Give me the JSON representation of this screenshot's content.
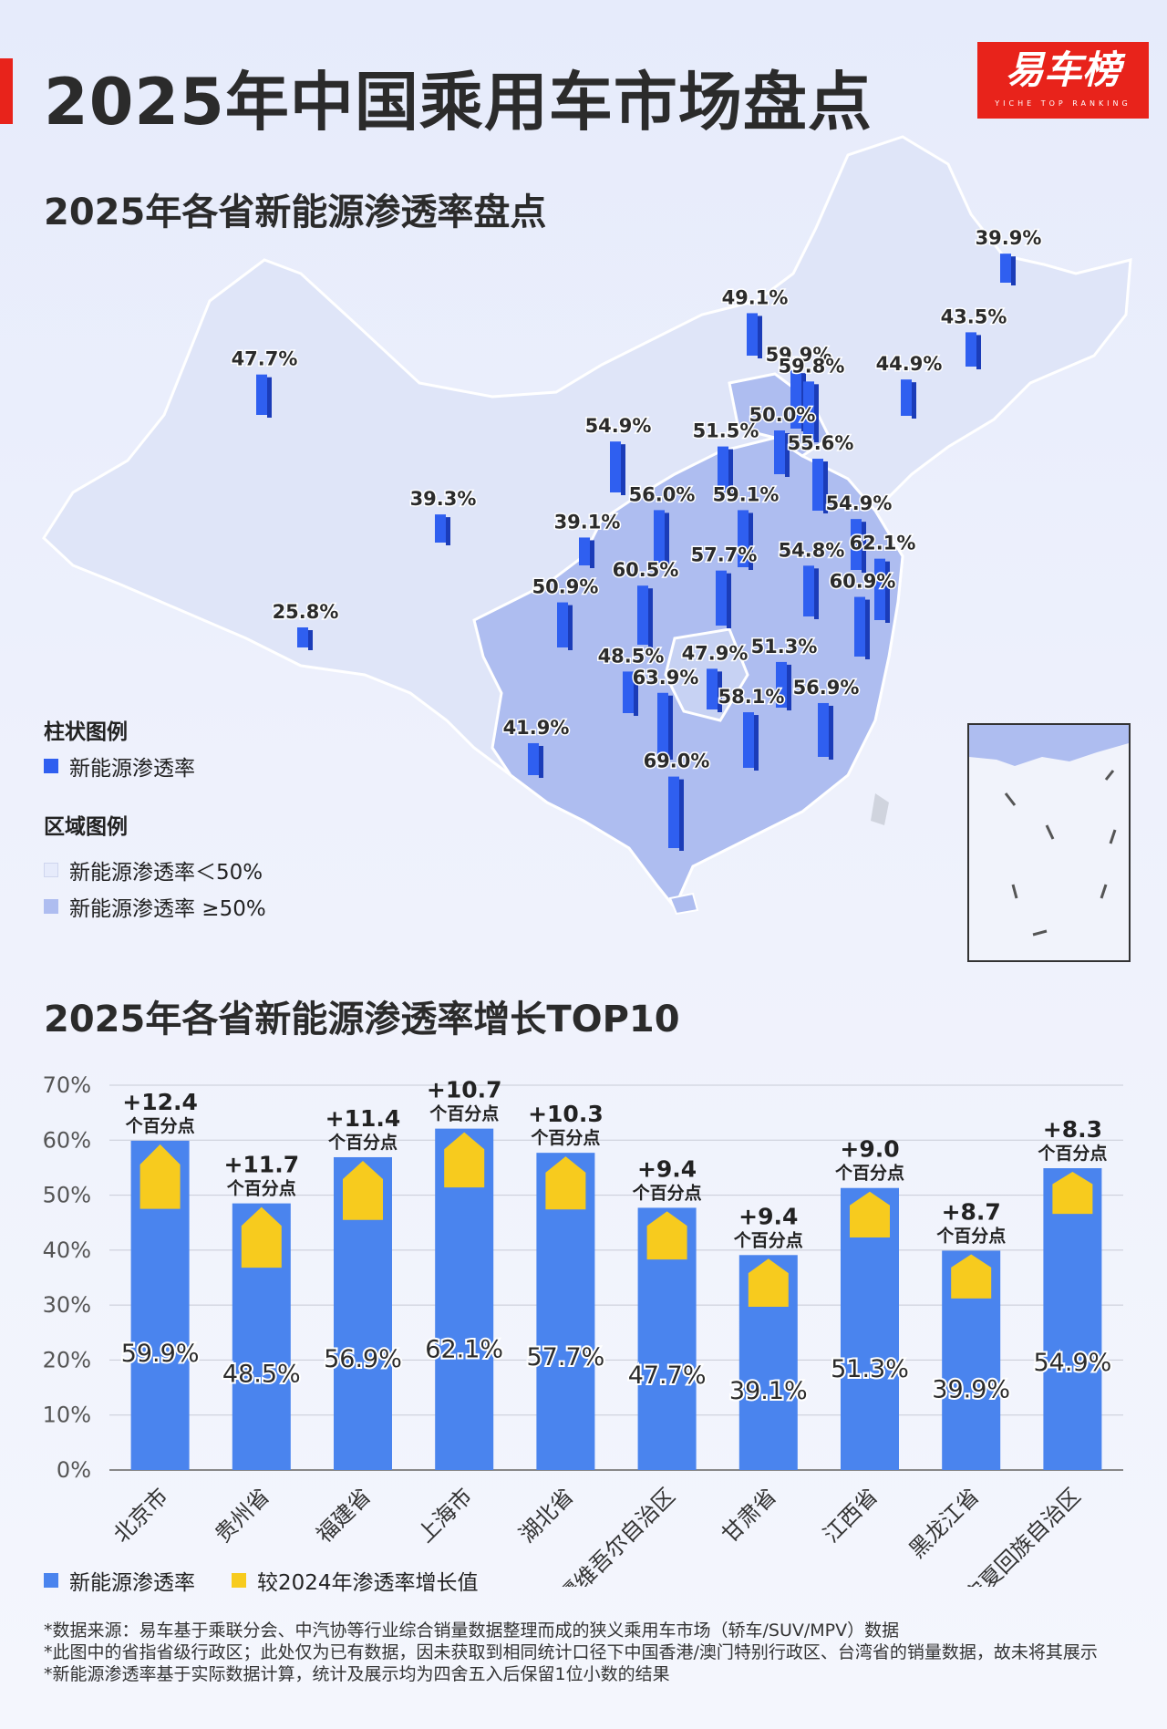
{
  "header": {
    "title": "2025年中国乘用车市场盘点",
    "brand_name": "易车榜",
    "brand_sub": "YICHE TOP RANKING",
    "brand_color": "#e8231b"
  },
  "map_section": {
    "title": "2025年各省新能源渗透率盘点",
    "bar_legend_title": "柱状图例",
    "bar_legend_item": "新能源渗透率",
    "region_legend_title": "区域图例",
    "region_low": "新能源渗透率＜50%",
    "region_high": "新能源渗透率 ≥50%",
    "colors": {
      "bar": "#2f5ff0",
      "bar_side": "#1b3cb8",
      "low_region": "#dfe5f8",
      "high_region": "#aebdf0",
      "border": "#ffffff"
    },
    "province_values": [
      "39.9%",
      "43.5%",
      "44.9%",
      "49.1%",
      "59.9%",
      "59.8%",
      "50.0%",
      "51.5%",
      "55.6%",
      "47.7%",
      "39.3%",
      "54.9%",
      "39.1%",
      "56.0%",
      "59.1%",
      "54.9%",
      "62.1%",
      "57.7%",
      "54.8%",
      "60.9%",
      "50.9%",
      "60.5%",
      "25.8%",
      "48.5%",
      "47.9%",
      "51.3%",
      "63.9%",
      "58.1%",
      "56.9%",
      "41.9%",
      "69.0%"
    ]
  },
  "chart_data": {
    "type": "bar",
    "title": "2025年各省新能源渗透率增长TOP10",
    "categories": [
      "北京市",
      "贵州省",
      "福建省",
      "上海市",
      "湖北省",
      "新疆维吾尔自治区",
      "甘肃省",
      "江西省",
      "黑龙江省",
      "宁夏回族自治区"
    ],
    "series": [
      {
        "name": "新能源渗透率",
        "values": [
          59.9,
          48.5,
          56.9,
          62.1,
          57.7,
          47.7,
          39.1,
          51.3,
          39.9,
          54.9
        ],
        "labels": [
          "59.9%",
          "48.5%",
          "56.9%",
          "62.1%",
          "57.7%",
          "47.7%",
          "39.1%",
          "51.3%",
          "39.9%",
          "54.9%"
        ],
        "color": "#4a84ee"
      },
      {
        "name": "较2024年渗透率增长值",
        "values": [
          12.4,
          11.7,
          11.4,
          10.7,
          10.3,
          9.4,
          9.4,
          9.0,
          8.7,
          8.3
        ],
        "labels": [
          "+12.4",
          "+11.7",
          "+11.4",
          "+10.7",
          "+10.3",
          "+9.4",
          "+9.4",
          "+9.0",
          "+8.7",
          "+8.3"
        ],
        "color": "#f7cb1e"
      }
    ],
    "growth_unit": "个百分点",
    "y_ticks": [
      "0%",
      "10%",
      "20%",
      "30%",
      "40%",
      "50%",
      "60%",
      "70%"
    ],
    "ylim": [
      0,
      70
    ],
    "grid": true,
    "legend": "bottom-left"
  },
  "notes": [
    "*数据来源：易车基于乘联分会、中汽协等行业综合销量数据整理而成的狭义乘用车市场（轿车/SUV/MPV）数据",
    "*此图中的省指省级行政区；此处仅为已有数据，因未获取到相同统计口径下中国香港/澳门特别行政区、台湾省的销量数据，故未将其展示",
    "*新能源渗透率基于实际数据计算，统计及展示均为四舍五入后保留1位小数的结果"
  ]
}
